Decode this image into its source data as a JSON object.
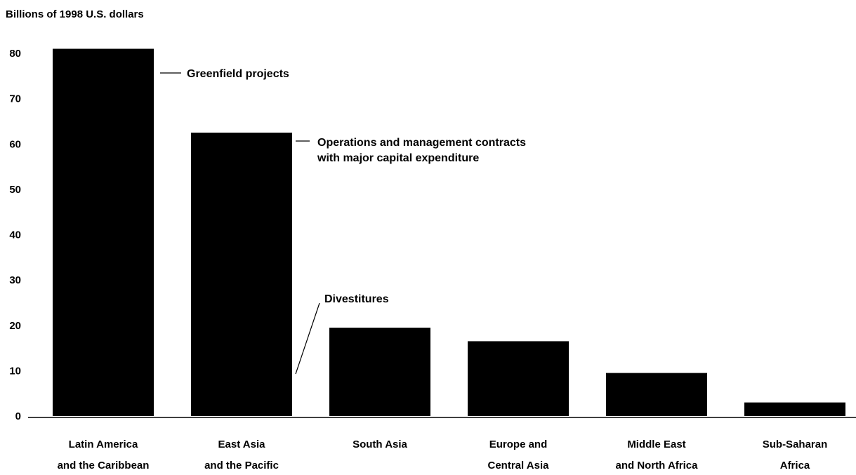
{
  "chart_data": {
    "type": "bar",
    "title": "",
    "ylabel": "Billions of 1998 U.S. dollars",
    "xlabel": "",
    "ylim": [
      0,
      80
    ],
    "yticks": [
      0,
      10,
      20,
      30,
      40,
      50,
      60,
      70,
      80
    ],
    "categories": [
      [
        "Latin America",
        "and the Caribbean"
      ],
      [
        "East Asia",
        "and the Pacific"
      ],
      [
        "South Asia"
      ],
      [
        "Europe and",
        "Central Asia"
      ],
      [
        "Middle East",
        "and North Africa"
      ],
      [
        "Sub-Saharan",
        "Africa"
      ]
    ],
    "values": [
      81,
      62.5,
      19.5,
      16.5,
      9.5,
      3
    ],
    "bar_color": "#000000",
    "annotations": [
      {
        "lines": [
          "Greenfield projects"
        ]
      },
      {
        "lines": [
          "Operations and management contracts",
          "with major capital expenditure"
        ]
      },
      {
        "lines": [
          "Divestitures"
        ]
      }
    ]
  }
}
